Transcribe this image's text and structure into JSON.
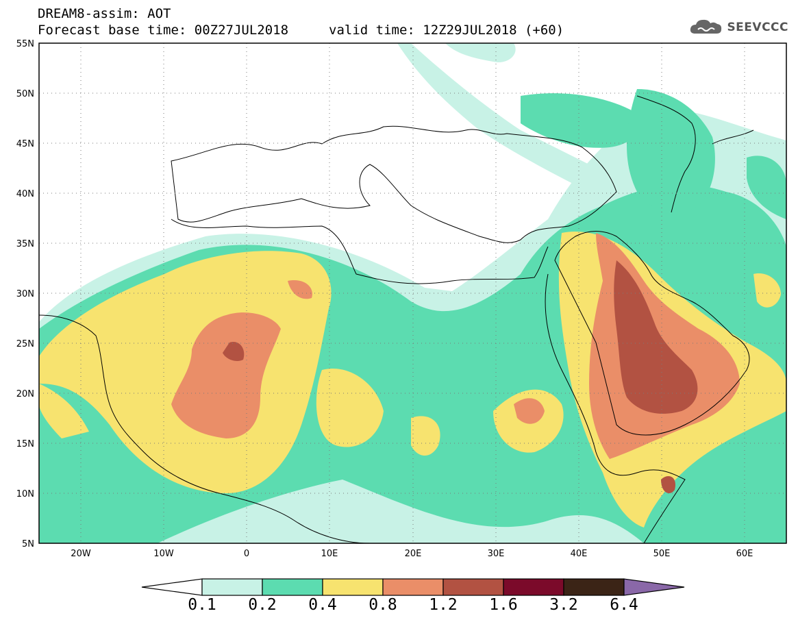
{
  "header": {
    "title": "DREAM8-assim: AOT",
    "base_time": "Forecast base time: 00Z27JUL2018",
    "valid_time": "valid time: 12Z29JUL2018 (+60)"
  },
  "logo": {
    "text": "SEEVCCC",
    "icon": "cloud-icon"
  },
  "map": {
    "lon_labels": [
      "20W",
      "10W",
      "0",
      "10E",
      "20E",
      "30E",
      "40E",
      "50E",
      "60E"
    ],
    "lat_labels": [
      "55N",
      "50N",
      "45N",
      "40N",
      "35N",
      "30N",
      "25N",
      "20N",
      "15N",
      "10N",
      "5N"
    ],
    "lon_range": [
      -25,
      65
    ],
    "lat_range": [
      5,
      55
    ]
  },
  "colorbar": {
    "labels": [
      "0.1",
      "0.2",
      "0.4",
      "0.8",
      "1.2",
      "1.6",
      "3.2",
      "6.4"
    ],
    "colors": [
      "#ffffff",
      "#c8f2e6",
      "#5cdcb0",
      "#f7e36f",
      "#ea8e68",
      "#b25242",
      "#7b0a2a",
      "#3b2416",
      "#8a68a8"
    ]
  }
}
